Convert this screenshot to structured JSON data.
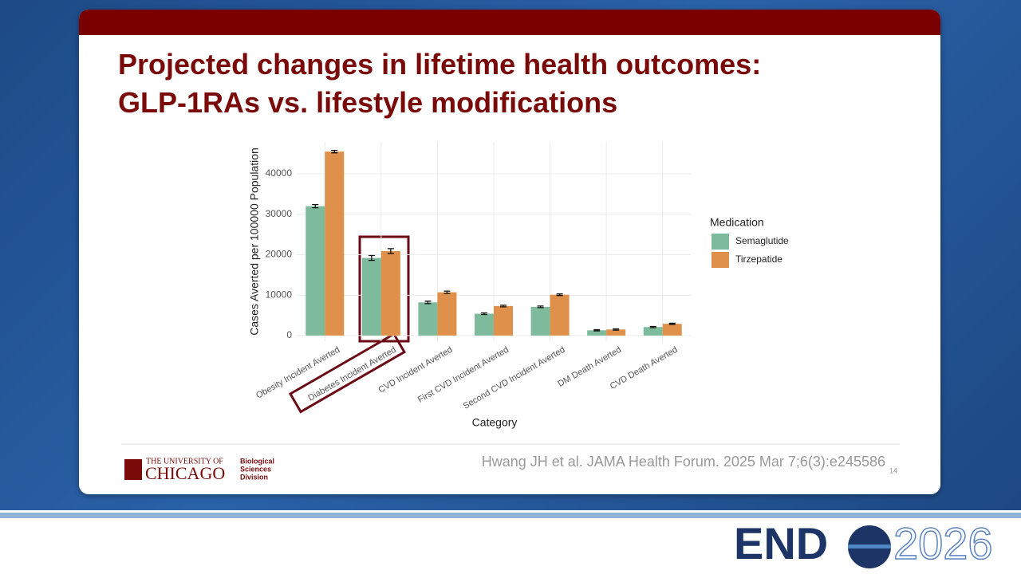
{
  "slide": {
    "title_lines": [
      "Projected changes in lifetime health outcomes:",
      "GLP-1RAs vs. lifestyle modifications"
    ],
    "citation": "Hwang JH et al. JAMA Health Forum. 2025 Mar 7;6(3):e245586",
    "page_number": "14",
    "logo": {
      "university": "THE UNIVERSITY OF",
      "name": "CHICAGO",
      "division": [
        "Biological",
        "Sciences",
        "Division"
      ]
    },
    "event_logo": {
      "left": "END",
      "right": "2026"
    }
  },
  "chart_data": {
    "type": "bar",
    "x_label": "Category",
    "y_label": "Cases Averted per 100000 Population",
    "categories": [
      "Obesity Incident Averted",
      "Diabetes Incident Averted",
      "CVD Incident Averted",
      "First CVD Incident Averted",
      "Second CVD Incident Averted",
      "DM Death Averted",
      "CVD Death Averted"
    ],
    "legend_title": "Medication",
    "series": [
      {
        "name": "Semaglutide",
        "color": "#7dbb9c",
        "values": [
          32000,
          19200,
          8200,
          5400,
          7100,
          1300,
          2100
        ],
        "errors": [
          400,
          600,
          300,
          200,
          200,
          150,
          150
        ]
      },
      {
        "name": "Tirzepatide",
        "color": "#df914b",
        "values": [
          45500,
          20900,
          10700,
          7300,
          10100,
          1500,
          2900
        ],
        "errors": [
          300,
          600,
          300,
          200,
          200,
          150,
          150
        ]
      }
    ],
    "ylim": [
      -1400,
      47900
    ],
    "yticks": [
      0,
      10000,
      20000,
      30000,
      40000
    ],
    "grid": true,
    "legend_position": "right"
  }
}
